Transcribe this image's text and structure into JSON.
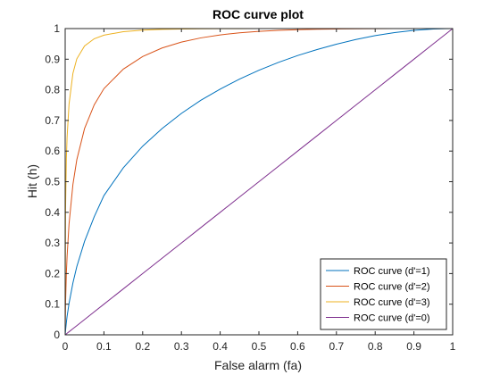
{
  "chart_data": {
    "type": "line",
    "title": "ROC curve plot",
    "xlabel": "False alarm (fa)",
    "ylabel": "Hit (h)",
    "xlim": [
      0,
      1
    ],
    "ylim": [
      0,
      1
    ],
    "x_ticks": [
      "0",
      "0.1",
      "0.2",
      "0.3",
      "0.4",
      "0.5",
      "0.6",
      "0.7",
      "0.8",
      "0.9",
      "1"
    ],
    "y_ticks": [
      "0",
      "0.1",
      "0.2",
      "0.3",
      "0.4",
      "0.5",
      "0.6",
      "0.7",
      "0.8",
      "0.9",
      "1"
    ],
    "grid": false,
    "box": true,
    "legend_position": "bottom-right",
    "x": [
      0,
      0.001,
      0.003,
      0.005,
      0.01,
      0.02,
      0.03,
      0.05,
      0.075,
      0.1,
      0.15,
      0.2,
      0.25,
      0.3,
      0.35,
      0.4,
      0.45,
      0.5,
      0.55,
      0.6,
      0.65,
      0.7,
      0.75,
      0.8,
      0.85,
      0.9,
      0.95,
      0.98,
      1
    ],
    "series": [
      {
        "name": "ROC curve (d'=1)",
        "color": "#0072BD",
        "values": [
          0,
          0.0145,
          0.0395,
          0.0611,
          0.1028,
          0.1695,
          0.2226,
          0.3051,
          0.3857,
          0.4547,
          0.5453,
          0.616,
          0.6735,
          0.723,
          0.7658,
          0.8024,
          0.8351,
          0.8639,
          0.8894,
          0.912,
          0.9316,
          0.949,
          0.9642,
          0.977,
          0.987,
          0.9941,
          0.9985,
          0.9998,
          1
        ]
      },
      {
        "name": "ROC curve (d'=2)",
        "color": "#D95319",
        "values": [
          0,
          0.1017,
          0.2005,
          0.2578,
          0.3624,
          0.4912,
          0.5718,
          0.6736,
          0.7511,
          0.8038,
          0.8676,
          0.9087,
          0.9365,
          0.956,
          0.9696,
          0.9794,
          0.9861,
          0.991,
          0.9941,
          0.9963,
          0.9978,
          0.9987,
          0.9993,
          0.9996,
          0.9999,
          1,
          1,
          1,
          1
        ]
      },
      {
        "name": "ROC curve (d'=3)",
        "color": "#EDB120",
        "values": [
          0,
          0.409,
          0.575,
          0.6468,
          0.7536,
          0.854,
          0.9011,
          0.9432,
          0.9668,
          0.9785,
          0.9898,
          0.9948,
          0.9973,
          0.9985,
          0.9992,
          0.9996,
          0.9998,
          0.9999,
          1,
          1,
          1,
          1,
          1,
          1,
          1,
          1,
          1,
          1,
          1
        ]
      },
      {
        "name": "ROC curve (d'=0)",
        "color": "#7E2F8E",
        "values": [
          0,
          0.001,
          0.003,
          0.005,
          0.01,
          0.02,
          0.03,
          0.05,
          0.075,
          0.1,
          0.15,
          0.2,
          0.25,
          0.3,
          0.35,
          0.4,
          0.45,
          0.5,
          0.55,
          0.6,
          0.65,
          0.7,
          0.75,
          0.8,
          0.85,
          0.9,
          0.95,
          0.98,
          1
        ]
      }
    ]
  }
}
